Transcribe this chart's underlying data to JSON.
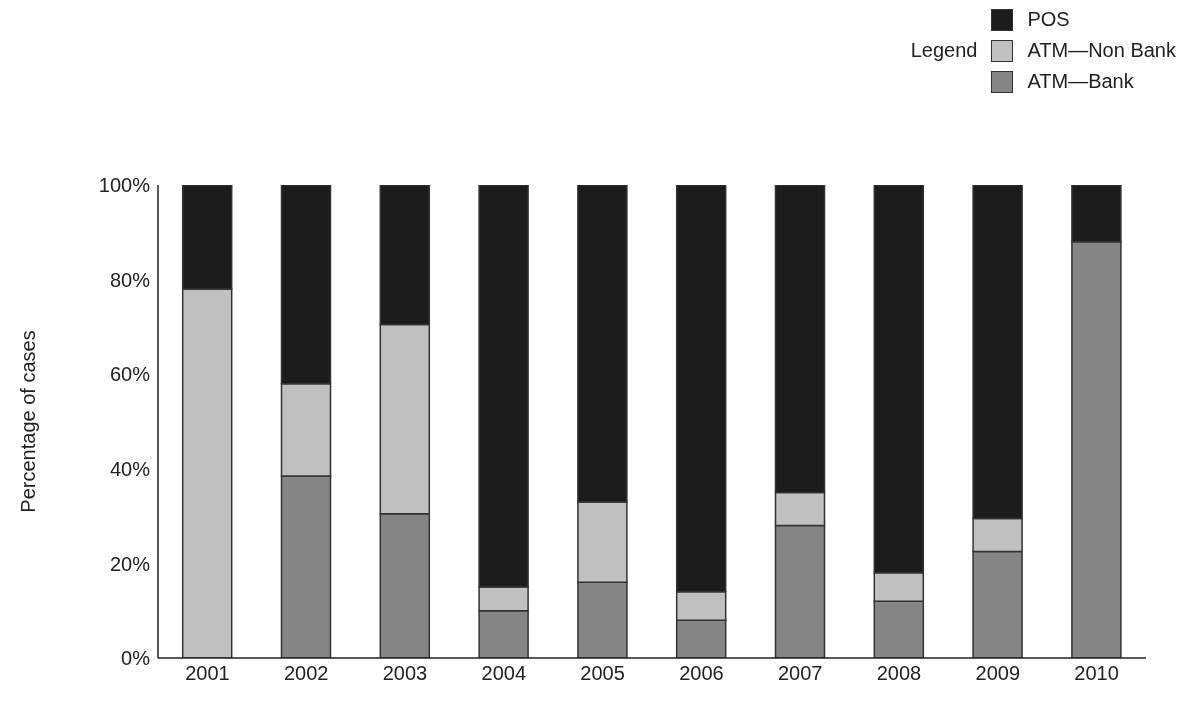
{
  "chart_data": {
    "type": "bar",
    "stacked": true,
    "ylabel": "Percentage of cases",
    "legend_title": "Legend",
    "legend": "top right",
    "categories": [
      "2001",
      "2002",
      "2003",
      "2004",
      "2005",
      "2006",
      "2007",
      "2008",
      "2009",
      "2010"
    ],
    "series": [
      {
        "name": "ATM—Bank",
        "color": "#858585",
        "values": [
          0,
          38.5,
          30.5,
          10,
          16,
          8,
          28,
          12,
          22.5,
          88
        ]
      },
      {
        "name": "ATM—Non Bank",
        "color": "#c0c0c0",
        "values": [
          78,
          19.5,
          40,
          5,
          17,
          6,
          7,
          6,
          7,
          0
        ]
      },
      {
        "name": "POS",
        "color": "#1c1c1c",
        "values": [
          22,
          42,
          29.5,
          85,
          67,
          86,
          65,
          82,
          70.5,
          12
        ]
      }
    ],
    "ylim": [
      0,
      100
    ],
    "yticks": [
      {
        "value": 0,
        "label": "0%"
      },
      {
        "value": 20,
        "label": "20%"
      },
      {
        "value": 40,
        "label": "40%"
      },
      {
        "value": 60,
        "label": "60%"
      },
      {
        "value": 80,
        "label": "80%"
      },
      {
        "value": 100,
        "label": "100%"
      }
    ]
  }
}
